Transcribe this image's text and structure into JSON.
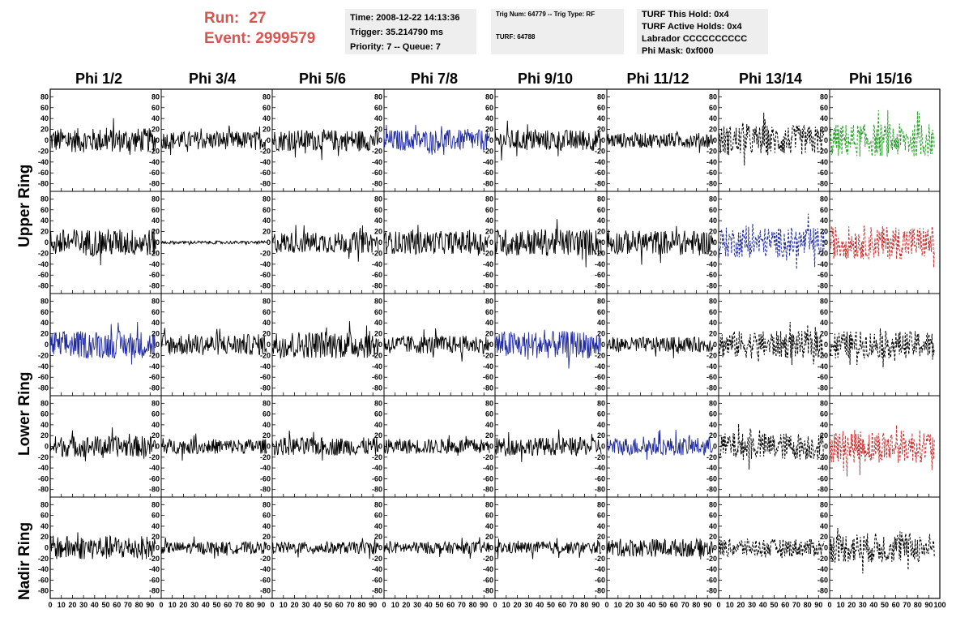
{
  "header": {
    "run_label": "Run:",
    "run_value": "27",
    "event_label": "Event:",
    "event_value": "2999579",
    "time": "Time: 2008-12-22 14:13:36",
    "trigger": "Trigger: 35.214790 ms",
    "priority": "Priority: 7 -- Queue: 7",
    "trig_num": "Trig Num: 64779 -- Trig Type: RF",
    "turf": "TURF: 64788",
    "turf_hold": "TURF This Hold: 0x4",
    "turf_active": "TURF Active Holds: 0x4",
    "labrador": "Labrador CCCCCCCCCC",
    "phi_mask": "Phi Mask: 0xf000"
  },
  "colors": {
    "title_red": "#d9534f",
    "trace_black": "#000000",
    "trace_blue": "#1f2aa0",
    "trace_green": "#22a022",
    "trace_red": "#c83030",
    "box_gray": "#eeeeee"
  },
  "chart_data": {
    "type": "line",
    "columns": [
      "Phi 1/2",
      "Phi 3/4",
      "Phi 5/6",
      "Phi 7/8",
      "Phi 9/10",
      "Phi 11/12",
      "Phi 13/14",
      "Phi 15/16"
    ],
    "row_labels": [
      {
        "label": "Upper Ring",
        "span": [
          0,
          1
        ]
      },
      {
        "label": "Lower Ring",
        "span": [
          2,
          3
        ]
      },
      {
        "label": "Nadir Ring",
        "span": [
          4,
          4
        ]
      }
    ],
    "xlim": [
      0,
      100
    ],
    "ylim": [
      -85,
      85
    ],
    "xticks": [
      0,
      10,
      20,
      30,
      40,
      50,
      60,
      70,
      80,
      90,
      100
    ],
    "xtick_labels": [
      "0",
      "10",
      "20",
      "30",
      "40",
      "50",
      "60",
      "70",
      "80",
      "90",
      "100"
    ],
    "yticks": [
      -80,
      -60,
      -40,
      -20,
      0,
      20,
      40,
      60,
      80
    ],
    "ytick_labels": [
      "-80",
      "-60",
      "-40",
      "-20",
      "0",
      "20",
      "40",
      "60",
      "80"
    ],
    "panels": [
      [
        {
          "color": "black",
          "amp": 16,
          "style": "solid"
        },
        {
          "color": "black",
          "amp": 12,
          "style": "solid"
        },
        {
          "color": "black",
          "amp": 14,
          "style": "solid"
        },
        {
          "color": "blue",
          "amp": 14,
          "style": "solid"
        },
        {
          "color": "black",
          "amp": 14,
          "style": "solid"
        },
        {
          "color": "black",
          "amp": 10,
          "style": "solid"
        },
        {
          "color": "black",
          "amp": 20,
          "style": "dashed"
        },
        {
          "color": "green",
          "amp": 22,
          "style": "dashed"
        }
      ],
      [
        {
          "color": "black",
          "amp": 18,
          "style": "solid"
        },
        {
          "color": "black",
          "amp": 2,
          "style": "solid"
        },
        {
          "color": "black",
          "amp": 14,
          "style": "solid"
        },
        {
          "color": "black",
          "amp": 15,
          "style": "solid"
        },
        {
          "color": "black",
          "amp": 18,
          "style": "solid"
        },
        {
          "color": "black",
          "amp": 16,
          "style": "solid"
        },
        {
          "color": "blue",
          "amp": 20,
          "style": "dashed"
        },
        {
          "color": "red",
          "amp": 22,
          "style": "dashed"
        }
      ],
      [
        {
          "color": "blue",
          "amp": 18,
          "style": "solid"
        },
        {
          "color": "black",
          "amp": 14,
          "style": "solid"
        },
        {
          "color": "black",
          "amp": 18,
          "style": "solid"
        },
        {
          "color": "black",
          "amp": 12,
          "style": "solid"
        },
        {
          "color": "blue",
          "amp": 18,
          "style": "solid"
        },
        {
          "color": "black",
          "amp": 10,
          "style": "solid"
        },
        {
          "color": "black",
          "amp": 18,
          "style": "dashed"
        },
        {
          "color": "black",
          "amp": 18,
          "style": "dashed"
        }
      ],
      [
        {
          "color": "black",
          "amp": 14,
          "style": "solid"
        },
        {
          "color": "black",
          "amp": 10,
          "style": "solid"
        },
        {
          "color": "black",
          "amp": 12,
          "style": "solid"
        },
        {
          "color": "black",
          "amp": 10,
          "style": "solid"
        },
        {
          "color": "black",
          "amp": 12,
          "style": "solid"
        },
        {
          "color": "blue",
          "amp": 12,
          "style": "solid"
        },
        {
          "color": "black",
          "amp": 18,
          "style": "dashed"
        },
        {
          "color": "red",
          "amp": 22,
          "style": "dashed"
        }
      ],
      [
        {
          "color": "black",
          "amp": 16,
          "style": "solid"
        },
        {
          "color": "black",
          "amp": 8,
          "style": "solid"
        },
        {
          "color": "black",
          "amp": 8,
          "style": "solid"
        },
        {
          "color": "black",
          "amp": 8,
          "style": "solid"
        },
        {
          "color": "black",
          "amp": 8,
          "style": "solid"
        },
        {
          "color": "black",
          "amp": 12,
          "style": "solid"
        },
        {
          "color": "black",
          "amp": 12,
          "style": "dashed"
        },
        {
          "color": "black",
          "amp": 20,
          "style": "dashed"
        }
      ]
    ]
  }
}
